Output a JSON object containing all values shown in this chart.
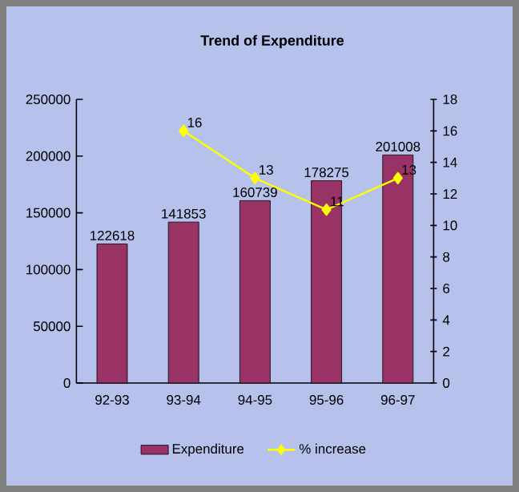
{
  "chart_data": {
    "type": "bar",
    "title": "Trend of Expenditure",
    "categories": [
      "92-93",
      "93-94",
      "94-95",
      "95-96",
      "96-97"
    ],
    "series": [
      {
        "name": "Expenditure",
        "color": "#993366",
        "values": [
          122618,
          141853,
          160739,
          178275,
          201008
        ]
      },
      {
        "name": "% increase",
        "type": "line",
        "axis": "y2",
        "color": "#ffff00",
        "values": [
          null,
          16,
          13,
          11,
          13
        ]
      }
    ],
    "marker": "diamond",
    "ylim": [
      0,
      250000
    ],
    "yticks": [
      0,
      50000,
      100000,
      150000,
      200000,
      250000
    ],
    "y2lim": [
      0,
      18
    ],
    "y2ticks": [
      0,
      2,
      4,
      6,
      8,
      10,
      12,
      14,
      16,
      18
    ],
    "data_labels": true,
    "legend": "bottom",
    "grid": false
  }
}
